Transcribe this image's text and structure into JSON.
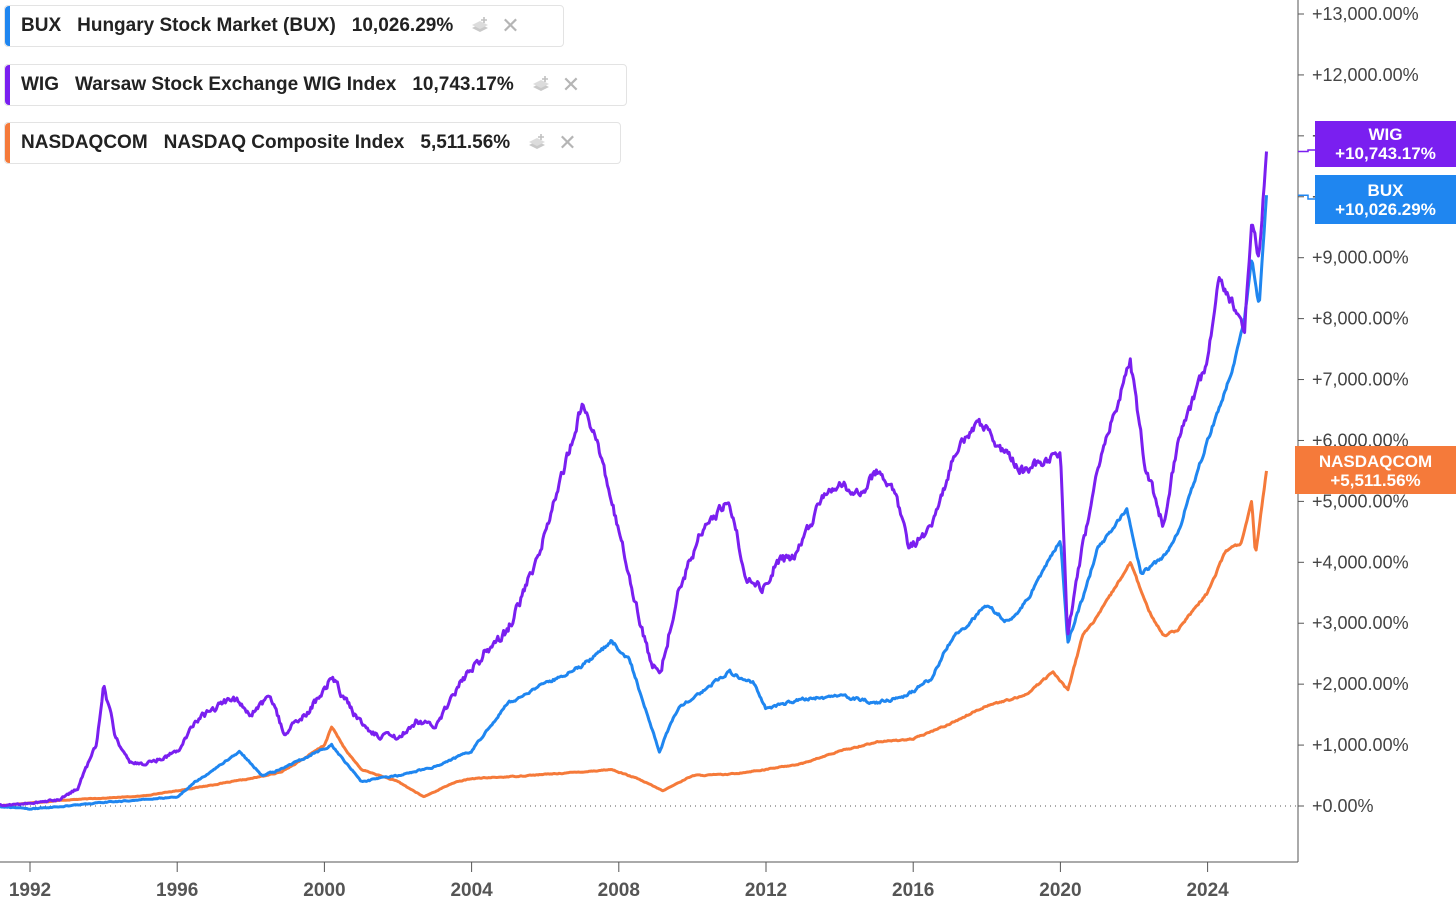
{
  "legend": [
    {
      "symbol": "BUX",
      "name": "Hungary Stock Market (BUX)",
      "value": "10,026.29%",
      "color": "#1f86f0"
    },
    {
      "symbol": "WIG",
      "name": "Warsaw Stock Exchange WIG Index",
      "value": "10,743.17%",
      "color": "#7a1ff0"
    },
    {
      "symbol": "NASDAQCOM",
      "name": "NASDAQ Composite Index",
      "value": "5,511.56%",
      "color": "#f57a3a"
    }
  ],
  "tags": {
    "wig": {
      "label": "WIG",
      "value": "+10,743.17%",
      "color": "#7a1ff0"
    },
    "bux": {
      "label": "BUX",
      "value": "+10,026.29%",
      "color": "#1f86f0"
    },
    "nasdaq": {
      "label": "NASDAQCOM",
      "value": "+5,511.56%",
      "color": "#f57a3a"
    }
  },
  "chart_data": {
    "type": "line",
    "title": "",
    "xlabel": "",
    "ylabel": "",
    "xlim": [
      1991.1,
      2026.9
    ],
    "ylim": [
      -900,
      13000
    ],
    "y_ticks": [
      0,
      1000,
      2000,
      3000,
      4000,
      5000,
      6000,
      7000,
      8000,
      9000,
      10000,
      11000,
      12000,
      13000
    ],
    "y_tick_labels": [
      "+0.00%",
      "+1,000.00%",
      "+2,000.00%",
      "+3,000.00%",
      "+4,000.00%",
      "+5,000.00%",
      "+6,000.00%",
      "+7,000.00%",
      "+8,000.00%",
      "+9,000.00%",
      "+10,000.00%",
      "+11,000.00%",
      "+12,000.00%",
      "+13,000.00%"
    ],
    "x_ticks": [
      1992,
      1996,
      2000,
      2004,
      2008,
      2012,
      2016,
      2020,
      2024
    ],
    "x_tick_labels": [
      "1992",
      "1996",
      "2000",
      "2004",
      "2008",
      "2012",
      "2016",
      "2020",
      "2024"
    ],
    "zero_line": "dotted",
    "series": [
      {
        "name": "NASDAQCOM",
        "color": "#f57a3a",
        "noise": 25,
        "x": [
          1991.1,
          1992.0,
          1993.0,
          1994.0,
          1995.0,
          1996.0,
          1997.0,
          1998.0,
          1998.8,
          1999.5,
          2000.0,
          2000.2,
          2000.6,
          2001.0,
          2001.5,
          2002.0,
          2002.7,
          2003.5,
          2004.0,
          2005.0,
          2006.0,
          2007.0,
          2007.8,
          2008.5,
          2009.2,
          2010.0,
          2011.0,
          2012.0,
          2013.0,
          2014.0,
          2015.0,
          2016.0,
          2017.0,
          2018.0,
          2019.0,
          2019.8,
          2020.2,
          2020.6,
          2021.0,
          2021.9,
          2022.4,
          2022.8,
          2023.2,
          2024.0,
          2024.5,
          2024.9,
          2025.2,
          2025.3,
          2025.6
        ],
        "y": [
          0,
          50,
          100,
          130,
          160,
          250,
          350,
          450,
          550,
          800,
          1000,
          1300,
          900,
          600,
          500,
          400,
          150,
          380,
          450,
          480,
          520,
          560,
          600,
          450,
          250,
          500,
          520,
          600,
          700,
          900,
          1050,
          1100,
          1350,
          1650,
          1800,
          2200,
          1900,
          2800,
          3100,
          4000,
          3200,
          2800,
          2900,
          3500,
          4200,
          4300,
          5000,
          4100,
          5500
        ]
      },
      {
        "name": "BUX",
        "color": "#1f86f0",
        "noise": 45,
        "x": [
          1991.1,
          1992.0,
          1993.0,
          1994.0,
          1995.0,
          1996.0,
          1996.5,
          1997.0,
          1997.7,
          1998.3,
          1998.8,
          1999.5,
          2000.2,
          2000.6,
          2001.0,
          2002.0,
          2003.0,
          2004.0,
          2005.0,
          2006.0,
          2007.0,
          2007.8,
          2008.3,
          2009.1,
          2009.6,
          2010.3,
          2011.0,
          2011.7,
          2012.0,
          2013.0,
          2014.0,
          2015.0,
          2015.8,
          2016.5,
          2017.0,
          2018.0,
          2018.6,
          2019.0,
          2019.5,
          2020.0,
          2020.2,
          2020.6,
          2021.0,
          2021.8,
          2022.2,
          2022.8,
          2023.2,
          2024.0,
          2024.7,
          2025.0,
          2025.2,
          2025.4,
          2025.6
        ],
        "y": [
          0,
          -50,
          0,
          60,
          100,
          150,
          400,
          600,
          900,
          500,
          600,
          800,
          1000,
          700,
          400,
          500,
          650,
          900,
          1700,
          2000,
          2300,
          2700,
          2400,
          900,
          1600,
          1900,
          2200,
          2000,
          1600,
          1750,
          1800,
          1700,
          1800,
          2100,
          2700,
          3300,
          3000,
          3300,
          3800,
          4400,
          2700,
          3400,
          4200,
          4900,
          3800,
          4100,
          4500,
          6000,
          7200,
          8000,
          9000,
          8200,
          10026
        ]
      },
      {
        "name": "WIG",
        "color": "#7a1ff0",
        "noise": 110,
        "x": [
          1991.1,
          1992.0,
          1992.8,
          1993.3,
          1993.8,
          1994.0,
          1994.3,
          1994.7,
          1995.2,
          1996.0,
          1996.5,
          1997.0,
          1997.5,
          1998.0,
          1998.5,
          1998.9,
          1999.5,
          2000.2,
          2000.7,
          2001.2,
          2002.0,
          2002.5,
          2003.0,
          2004.0,
          2005.0,
          2005.8,
          2006.5,
          2007.0,
          2007.4,
          2007.8,
          2008.2,
          2008.8,
          2009.1,
          2009.6,
          2010.3,
          2011.0,
          2011.5,
          2011.9,
          2012.3,
          2012.8,
          2013.5,
          2014.0,
          2014.6,
          2015.0,
          2015.5,
          2015.9,
          2016.5,
          2017.2,
          2017.8,
          2018.5,
          2019.0,
          2019.6,
          2020.0,
          2020.2,
          2020.6,
          2021.0,
          2021.5,
          2021.9,
          2022.3,
          2022.8,
          2023.2,
          2024.0,
          2024.3,
          2024.8,
          2025.0,
          2025.2,
          2025.4,
          2025.6
        ],
        "y": [
          0,
          50,
          100,
          300,
          1000,
          2000,
          1200,
          700,
          700,
          900,
          1400,
          1600,
          1800,
          1500,
          1800,
          1200,
          1500,
          2100,
          1600,
          1200,
          1100,
          1400,
          1300,
          2300,
          2900,
          4100,
          5500,
          6600,
          6000,
          5000,
          4000,
          2500,
          2100,
          3500,
          4600,
          5000,
          3700,
          3600,
          4000,
          4100,
          5000,
          5300,
          5100,
          5500,
          5200,
          4200,
          4600,
          5900,
          6300,
          5800,
          5500,
          5700,
          5700,
          2800,
          4200,
          5600,
          6500,
          7300,
          5600,
          4600,
          6000,
          7300,
          8700,
          8100,
          7800,
          9600,
          9000,
          10743
        ]
      }
    ]
  }
}
